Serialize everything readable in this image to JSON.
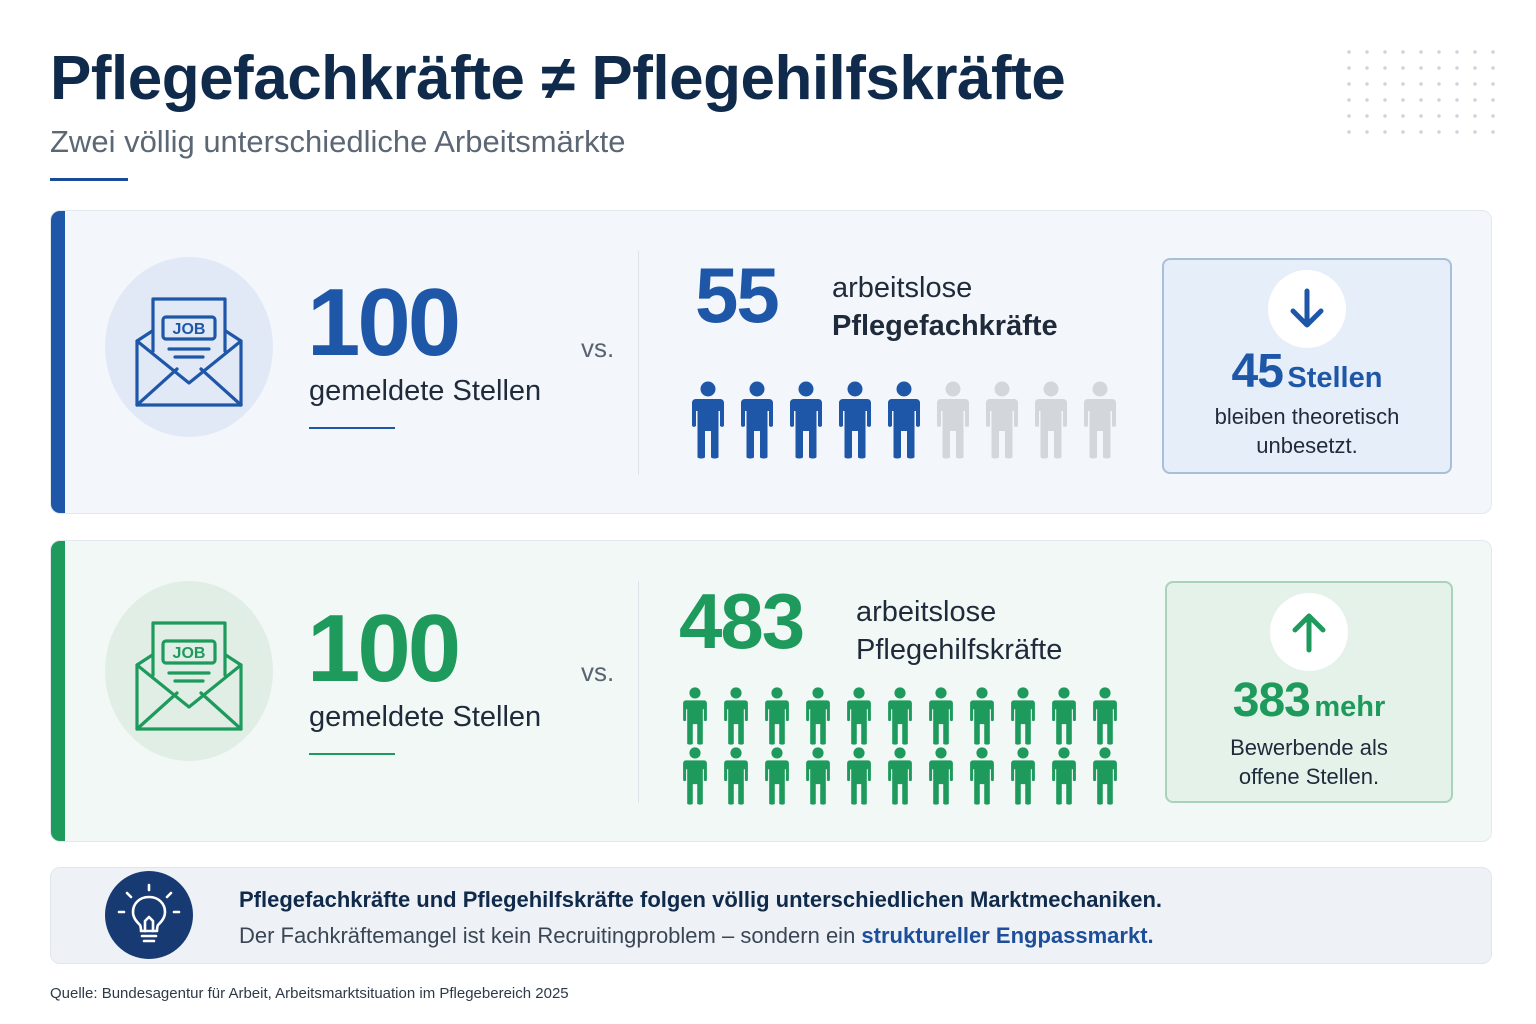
{
  "header": {
    "title": "Pflegefachkräfte ≠ Pflegehilfskräfte",
    "subtitle": "Zwei völlig unterschiedliche Arbeitsmärkte"
  },
  "colors": {
    "blue": "#1f57a8",
    "green": "#1e9a5c",
    "navy": "#0f2a4a",
    "person_grey": "#d3d6db"
  },
  "fachkraefte": {
    "icon": "job-envelope-icon",
    "envelope_label": "JOB",
    "jobs_value": "100",
    "jobs_label": "gemeldete Stellen",
    "vs": "vs.",
    "unemployed_value": "55",
    "unemployed_line1": "arbeitslose",
    "unemployed_line2": "Pflegefachkräfte",
    "people_filled": 5,
    "people_total": 9,
    "result_icon": "arrow-down-icon",
    "result_value": "45",
    "result_unit": "Stellen",
    "result_text_l1": "bleiben theoretisch",
    "result_text_l2": "unbesetzt."
  },
  "hilfskraefte": {
    "icon": "job-envelope-icon",
    "envelope_label": "JOB",
    "jobs_value": "100",
    "jobs_label": "gemeldete Stellen",
    "vs": "vs.",
    "unemployed_value": "483",
    "unemployed_line1": "arbeitslose",
    "unemployed_line2": "Pflegehilfskräfte",
    "people_rows": 2,
    "people_per_row": 11,
    "result_icon": "arrow-up-icon",
    "result_value": "383",
    "result_unit": "mehr",
    "result_text_l1": "Bewerbende als",
    "result_text_l2": "offene Stellen."
  },
  "insight": {
    "icon": "lightbulb-icon",
    "line1": "Pflegefachkräfte und Pflegehilfskräfte folgen völlig unterschiedlichen Marktmechaniken.",
    "line2_prefix": "Der Fachkräftemangel ist kein Recruitingproblem – sondern ein ",
    "line2_highlight": "struktureller Engpassmarkt."
  },
  "source": "Quelle: Bundesagentur für Arbeit, Arbeitsmarktsituation im Pflegebereich 2025"
}
